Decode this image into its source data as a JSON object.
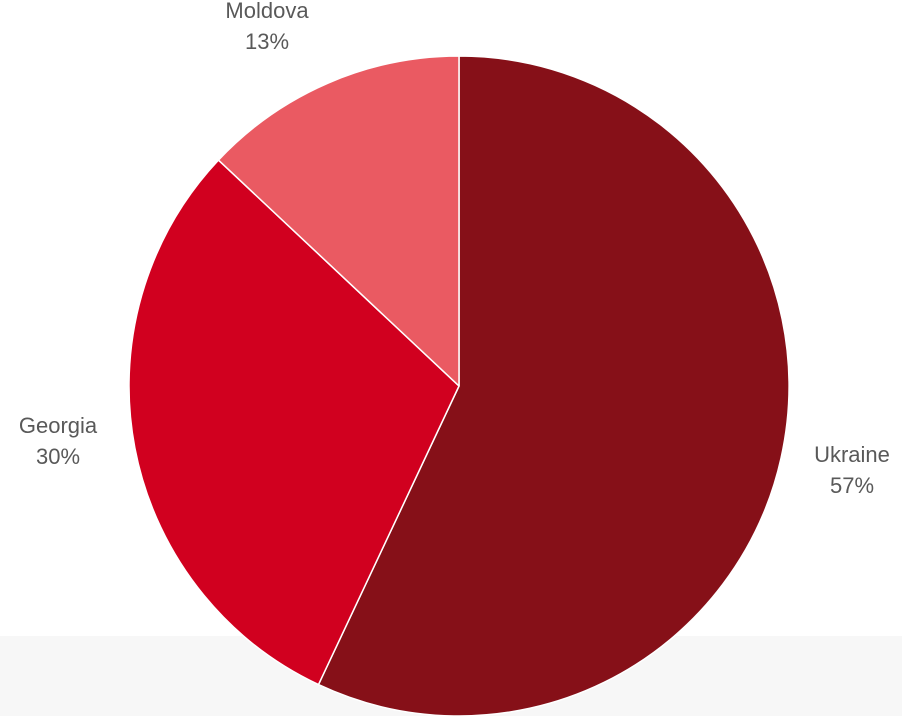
{
  "chart_data": {
    "type": "pie",
    "title": "",
    "slices": [
      {
        "label": "Ukraine",
        "value": 57,
        "value_label": "57%",
        "color": "#861018"
      },
      {
        "label": "Georgia",
        "value": 30,
        "value_label": "30%",
        "color": "#d1001f"
      },
      {
        "label": "Moldova",
        "value": 13,
        "value_label": "13%",
        "color": "#ea5a62"
      }
    ],
    "start": "top",
    "direction": "clockwise",
    "legend": "none",
    "data_labels": "outside"
  }
}
